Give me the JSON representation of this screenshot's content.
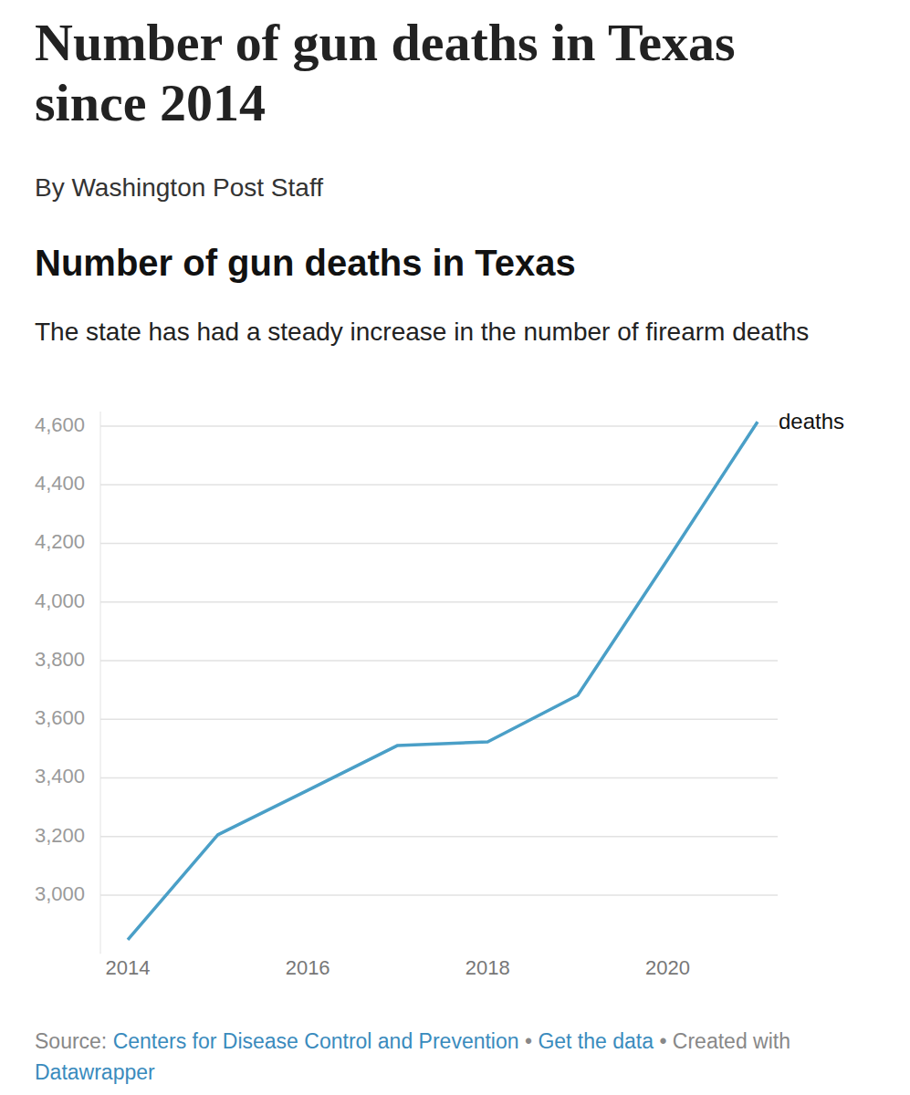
{
  "header": {
    "title": "Number of gun deaths in Texas since 2014",
    "byline": "By Washington Post Staff"
  },
  "chart_data": {
    "type": "line",
    "title": "Number of gun deaths in Texas",
    "subtitle": "The state has had a steady increase in the number of firearm deaths",
    "x": [
      2014,
      2015,
      2016,
      2017,
      2018,
      2019,
      2020,
      2021
    ],
    "series": [
      {
        "name": "deaths",
        "color": "#4a9fc7",
        "values": [
          2848,
          3206,
          3358,
          3511,
          3523,
          3682,
          4145,
          4615
        ]
      }
    ],
    "xlim": [
      2014,
      2021
    ],
    "xticks": [
      2014,
      2016,
      2018,
      2020
    ],
    "ylim": [
      2800,
      4650
    ],
    "yticks": [
      {
        "value": 3000,
        "label": "3,000"
      },
      {
        "value": 3200,
        "label": "3,200"
      },
      {
        "value": 3400,
        "label": "3,400"
      },
      {
        "value": 3600,
        "label": "3,600"
      },
      {
        "value": 3800,
        "label": "3,800"
      },
      {
        "value": 4000,
        "label": "4,000"
      },
      {
        "value": 4200,
        "label": "4,200"
      },
      {
        "value": 4400,
        "label": "4,400"
      },
      {
        "value": 4600,
        "label": "4,600"
      }
    ],
    "grid": true,
    "source": {
      "prefix": "Source:",
      "name": "Centers for Disease Control and Prevention",
      "separator": "•",
      "link": "Get the data",
      "created": "Created with",
      "tool": "Datawrapper"
    }
  }
}
